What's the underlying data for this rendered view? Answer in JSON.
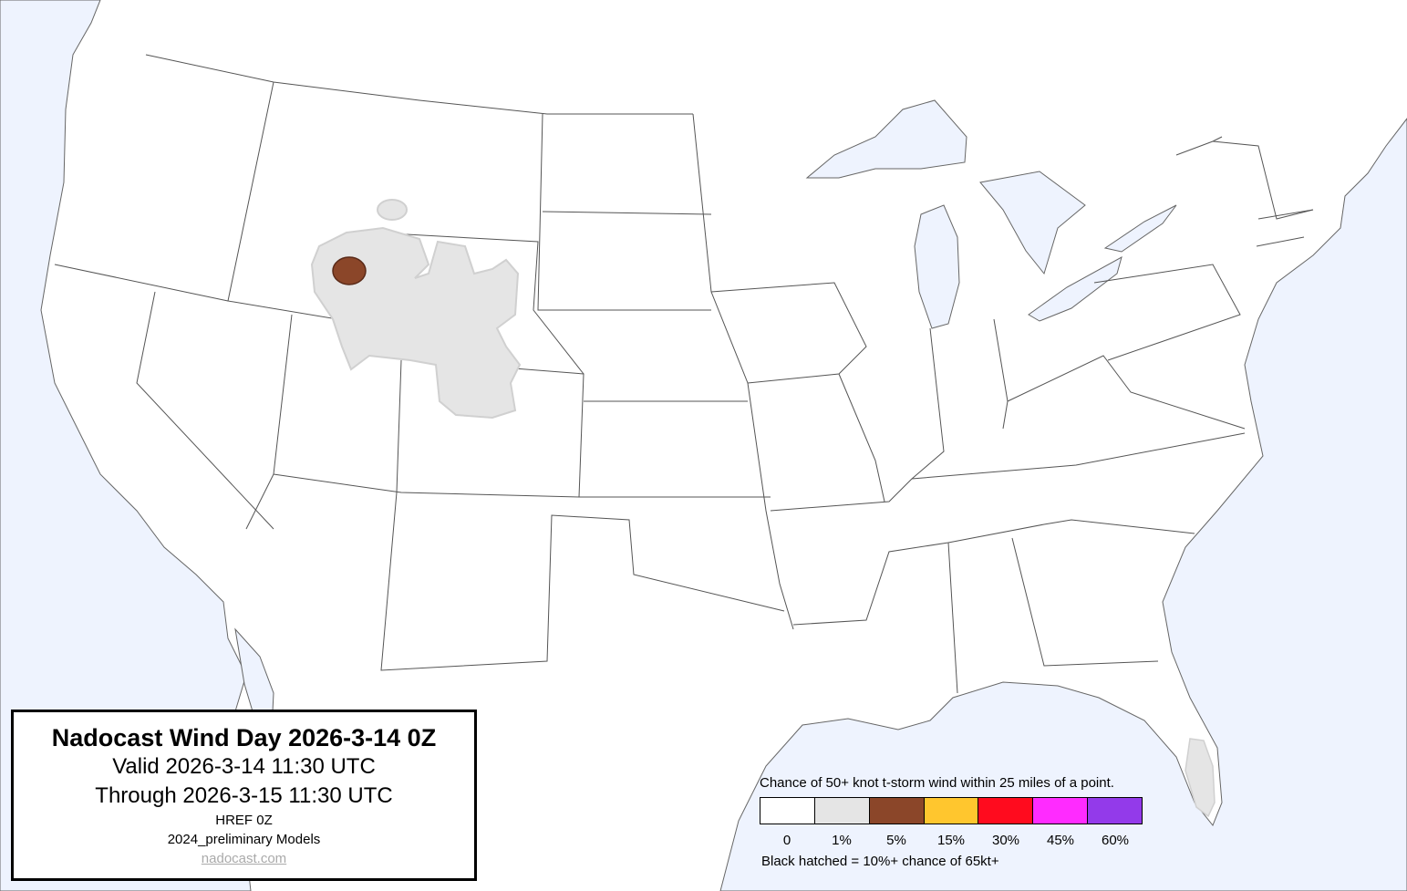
{
  "title_box": {
    "title": "Nadocast Wind Day 2026-3-14 0Z",
    "valid": "Valid 2026-3-14 11:30 UTC",
    "through": "Through 2026-3-15 11:30 UTC",
    "model": "HREF 0Z",
    "models_version": "2024_preliminary Models",
    "link": "nadocast.com"
  },
  "legend": {
    "title": "Chance of 50+ knot t-storm wind within 25 miles of a point.",
    "bins": [
      {
        "label": "0",
        "color": "#ffffff"
      },
      {
        "label": "1%",
        "color": "#e5e5e5"
      },
      {
        "label": "5%",
        "color": "#8b4629"
      },
      {
        "label": "15%",
        "color": "#ffc62e"
      },
      {
        "label": "30%",
        "color": "#ff0b1e"
      },
      {
        "label": "45%",
        "color": "#ff2bff"
      },
      {
        "label": "60%",
        "color": "#933aea"
      }
    ],
    "note": "Black hatched = 10%+ chance of 65kt+"
  },
  "colors": {
    "water": "#eef3fe",
    "land": "#ffffff",
    "borders": "#555555"
  },
  "forecast_areas": [
    {
      "region": "Idaho / Wyoming / Utah / Colorado",
      "level": "1%"
    },
    {
      "region": "Eastern Idaho",
      "level": "5%"
    },
    {
      "region": "Southern Florida",
      "level": "1%"
    }
  ]
}
